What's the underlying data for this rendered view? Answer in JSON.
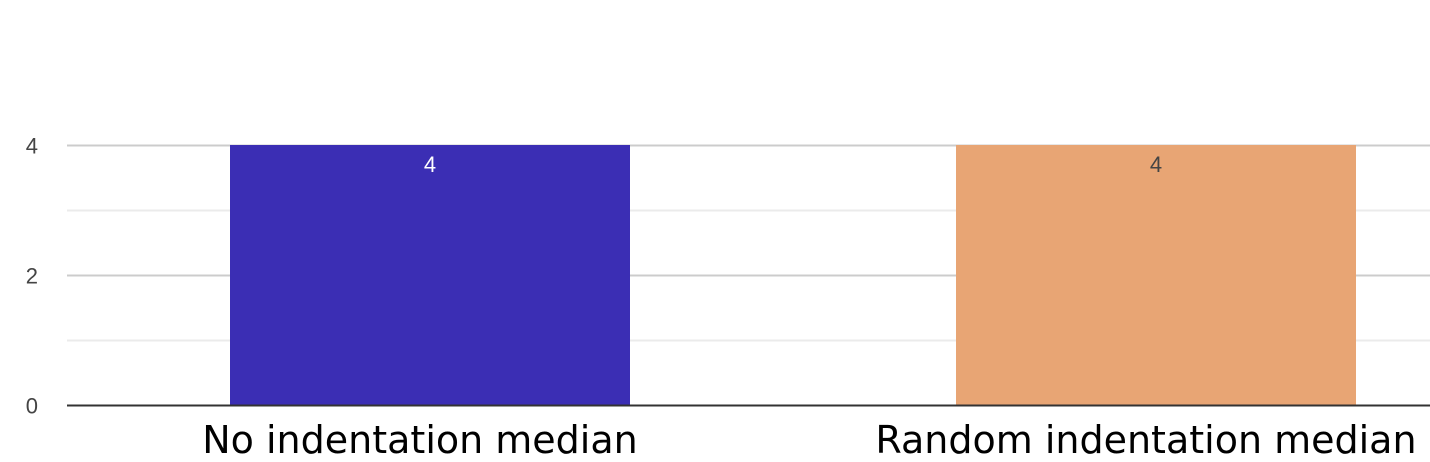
{
  "chart_data": {
    "type": "bar",
    "categories": [
      "No indentation median",
      "Random indentation median"
    ],
    "values": [
      4,
      4
    ],
    "data_labels": [
      "4",
      "4"
    ],
    "colors": [
      "#3b2eb4",
      "#e8a574"
    ],
    "data_label_colors": [
      "#ffffff",
      "#444444"
    ],
    "title": "",
    "xlabel": "",
    "ylabel": "",
    "ylim": [
      0,
      4
    ],
    "yticks": [
      0,
      2,
      4
    ],
    "grid": true,
    "legend": "none"
  }
}
